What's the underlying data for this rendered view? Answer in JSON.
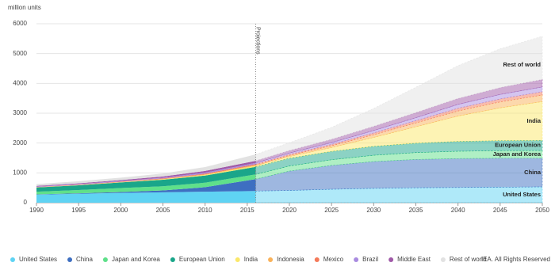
{
  "chart_data": {
    "type": "stacked-area",
    "y_axis_label": "million units",
    "x": [
      1990,
      1995,
      2000,
      2005,
      2010,
      2016,
      2020,
      2025,
      2030,
      2035,
      2040,
      2045,
      2050
    ],
    "xlim": [
      1990,
      2050
    ],
    "xticks": [
      1990,
      1995,
      2000,
      2005,
      2010,
      2015,
      2020,
      2025,
      2030,
      2035,
      2040,
      2045,
      2050
    ],
    "ylim": [
      0,
      6000
    ],
    "yticks": [
      0,
      1000,
      2000,
      3000,
      4000,
      5000,
      6000
    ],
    "grid": true,
    "projection": {
      "x": 2016,
      "label": "Projections"
    },
    "legend": "bottom",
    "series": [
      {
        "name": "United States",
        "color": "#5fd3f3",
        "direct_label": true,
        "values": [
          270,
          300,
          330,
          350,
          370,
          390,
          410,
          450,
          480,
          500,
          510,
          520,
          530
        ]
      },
      {
        "name": "China",
        "color": "#3e6fc1",
        "direct_label": true,
        "values": [
          10,
          15,
          30,
          60,
          150,
          400,
          650,
          800,
          900,
          950,
          970,
          970,
          960
        ]
      },
      {
        "name": "Japan and Korea",
        "color": "#5fe08a",
        "direct_label": true,
        "values": [
          90,
          110,
          130,
          140,
          150,
          160,
          170,
          190,
          210,
          230,
          245,
          255,
          260
        ]
      },
      {
        "name": "European Union",
        "color": "#1aa68a",
        "direct_label": true,
        "values": [
          140,
          160,
          190,
          220,
          240,
          250,
          260,
          280,
          300,
          315,
          330,
          335,
          340
        ]
      },
      {
        "name": "India",
        "color": "#fbe86a",
        "direct_label": true,
        "values": [
          5,
          7,
          10,
          15,
          25,
          40,
          60,
          130,
          300,
          550,
          850,
          1100,
          1300
        ]
      },
      {
        "name": "Indonesia",
        "color": "#f9b25a",
        "direct_label": false,
        "values": [
          3,
          4,
          5,
          10,
          15,
          25,
          35,
          60,
          90,
          130,
          170,
          200,
          220
        ]
      },
      {
        "name": "Mexico",
        "color": "#f47a5a",
        "direct_label": false,
        "values": [
          10,
          12,
          15,
          20,
          25,
          30,
          35,
          45,
          60,
          75,
          90,
          100,
          110
        ]
      },
      {
        "name": "Brazil",
        "color": "#a98be0",
        "direct_label": false,
        "values": [
          15,
          18,
          20,
          25,
          35,
          40,
          45,
          60,
          80,
          100,
          130,
          150,
          160
        ]
      },
      {
        "name": "Middle East",
        "color": "#a05aa8",
        "direct_label": false,
        "values": [
          20,
          25,
          30,
          40,
          55,
          70,
          85,
          110,
          140,
          170,
          200,
          230,
          250
        ]
      },
      {
        "name": "Rest of world",
        "color": "#e2e2e2",
        "direct_label": true,
        "values": [
          60,
          70,
          80,
          100,
          130,
          215,
          260,
          400,
          600,
          850,
          1100,
          1300,
          1450
        ]
      }
    ],
    "footer": "IEA. All Rights Reserved"
  }
}
